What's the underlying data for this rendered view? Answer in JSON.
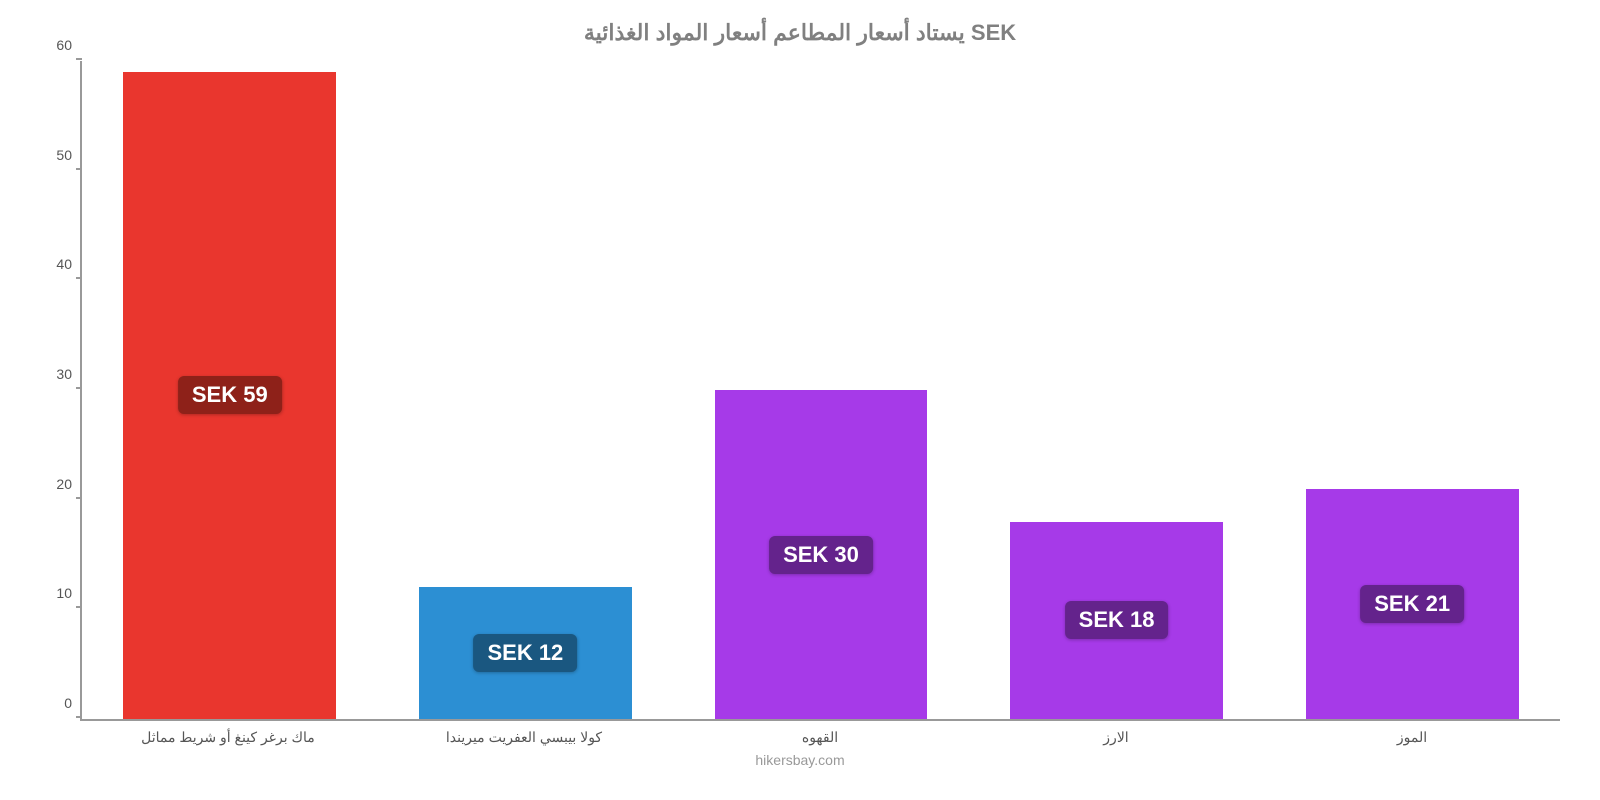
{
  "chart": {
    "type": "bar",
    "title": "يستاد أسعار المطاعم أسعار المواد الغذائية SEK",
    "title_color": "#808080",
    "title_fontsize": 22,
    "attribution": "hikersbay.com",
    "attribution_color": "#999999",
    "background_color": "#ffffff",
    "axis_color": "#999999",
    "tick_label_color": "#555555",
    "tick_label_fontsize": 14,
    "ylim": [
      0,
      60
    ],
    "yticks": [
      0,
      10,
      20,
      30,
      40,
      50,
      60
    ],
    "bar_width_pct": 72,
    "value_label_fontsize": 22,
    "value_label_text_color": "#ffffff",
    "bars": [
      {
        "category": "ماك برغر كينغ أو شريط مماثل",
        "value": 59,
        "value_label": "SEK 59",
        "color": "#e9362e",
        "badge_bg": "#8e2119"
      },
      {
        "category": "كولا بيبسي العفريت ميريندا",
        "value": 12,
        "value_label": "SEK 12",
        "color": "#2c8fd3",
        "badge_bg": "#1a5780"
      },
      {
        "category": "القهوه",
        "value": 30,
        "value_label": "SEK 30",
        "color": "#a63ae8",
        "badge_bg": "#64238c"
      },
      {
        "category": "الارز",
        "value": 18,
        "value_label": "SEK 18",
        "color": "#a63ae8",
        "badge_bg": "#64238c"
      },
      {
        "category": "الموز",
        "value": 21,
        "value_label": "SEK 21",
        "color": "#a63ae8",
        "badge_bg": "#64238c"
      }
    ]
  }
}
